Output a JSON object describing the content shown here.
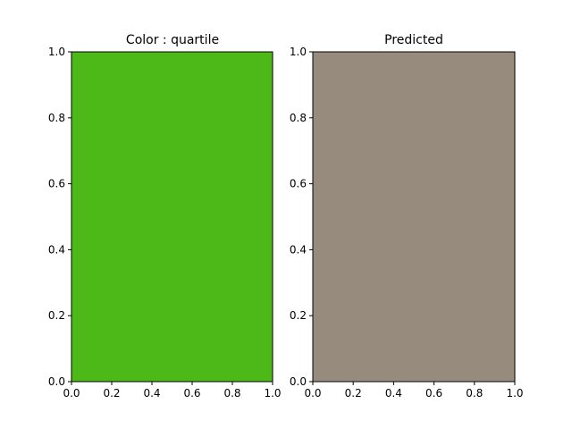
{
  "chart_data": [
    {
      "type": "heatmap",
      "title": "Color : quartile",
      "fill_color": "#4cb918",
      "xlim": [
        0,
        1
      ],
      "ylim": [
        0,
        1
      ],
      "x_ticks": [
        "0.0",
        "0.2",
        "0.4",
        "0.6",
        "0.8",
        "1.0"
      ],
      "y_ticks": [
        "0.0",
        "0.2",
        "0.4",
        "0.6",
        "0.8",
        "1.0"
      ],
      "grid": false
    },
    {
      "type": "heatmap",
      "title": "Predicted",
      "fill_color": "#978b7e",
      "xlim": [
        0,
        1
      ],
      "ylim": [
        0,
        1
      ],
      "x_ticks": [
        "0.0",
        "0.2",
        "0.4",
        "0.6",
        "0.8",
        "1.0"
      ],
      "y_ticks": [
        "0.0",
        "0.2",
        "0.4",
        "0.6",
        "0.8",
        "1.0"
      ],
      "grid": false
    }
  ]
}
